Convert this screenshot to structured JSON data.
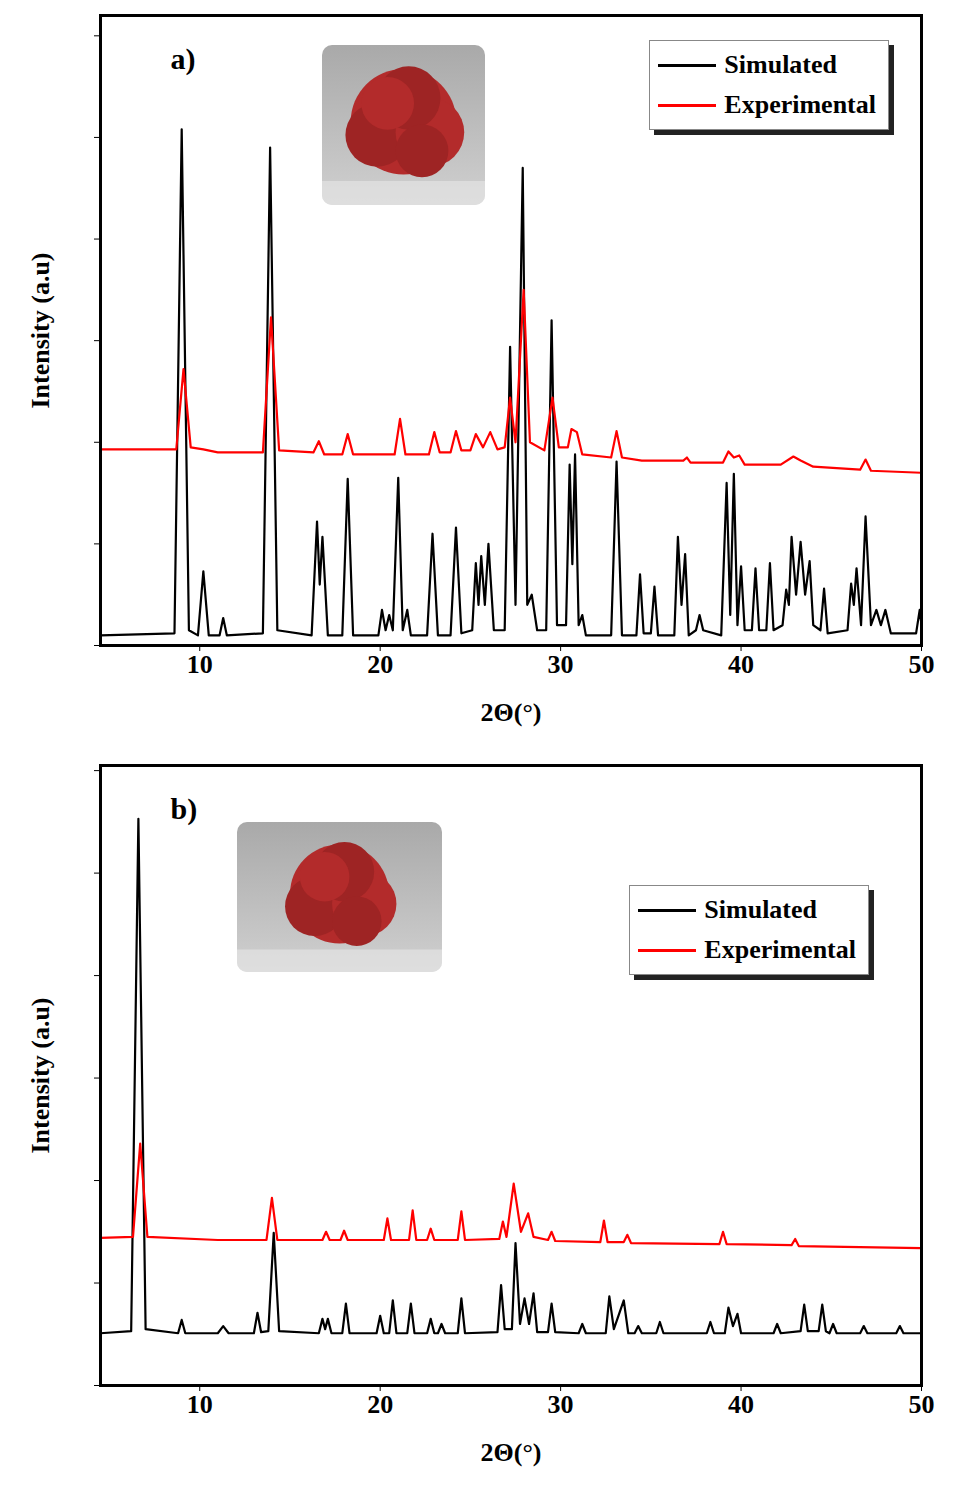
{
  "chart_data": [
    {
      "type": "line",
      "title": "a)",
      "x_label": "2Θ(°)",
      "y_label": "Intensity (a.u)",
      "xlim": [
        4.5,
        50
      ],
      "xticks": [
        10,
        20,
        30,
        40,
        50
      ],
      "ylim": [
        0,
        6.2
      ],
      "yticks": [
        0,
        1,
        2,
        3,
        4,
        5,
        6
      ],
      "tick_labels": "x",
      "grid": false,
      "legend": "upper right",
      "series": [
        {
          "name": "Simulated",
          "color": "#000000",
          "x": [
            4.5,
            8.6,
            9.0,
            9.4,
            9.9,
            10.2,
            10.5,
            11.1,
            11.3,
            11.5,
            13.5,
            13.9,
            14.3,
            16.2,
            16.5,
            16.65,
            16.8,
            17.1,
            17.9,
            18.2,
            18.5,
            19.9,
            20.1,
            20.3,
            20.5,
            20.7,
            21.0,
            21.25,
            21.5,
            21.7,
            22.6,
            22.9,
            23.2,
            23.9,
            24.2,
            24.5,
            25.1,
            25.3,
            25.45,
            25.6,
            25.8,
            26.0,
            26.3,
            26.9,
            27.2,
            27.5,
            27.9,
            28.15,
            28.4,
            28.7,
            29.2,
            29.5,
            29.8,
            30.3,
            30.5,
            30.65,
            30.8,
            31.0,
            31.2,
            31.4,
            32.8,
            33.1,
            33.4,
            34.2,
            34.4,
            34.6,
            35.0,
            35.2,
            35.4,
            36.3,
            36.5,
            36.7,
            36.9,
            37.1,
            37.5,
            37.7,
            37.9,
            38.9,
            39.2,
            39.4,
            39.6,
            39.8,
            40.0,
            40.2,
            40.6,
            40.8,
            41.0,
            41.4,
            41.6,
            41.8,
            42.3,
            42.5,
            42.65,
            42.8,
            43.05,
            43.3,
            43.55,
            43.8,
            44.0,
            44.4,
            44.6,
            44.8,
            45.9,
            46.1,
            46.25,
            46.4,
            46.65,
            46.9,
            47.2,
            47.5,
            47.75,
            48.0,
            48.3,
            49.7,
            49.9,
            50
          ],
          "values": [
            0.1,
            0.12,
            5.08,
            0.15,
            0.1,
            0.73,
            0.1,
            0.1,
            0.27,
            0.1,
            0.12,
            4.9,
            0.15,
            0.1,
            1.22,
            0.6,
            1.07,
            0.1,
            0.1,
            1.64,
            0.1,
            0.1,
            0.35,
            0.15,
            0.3,
            0.15,
            1.65,
            0.15,
            0.35,
            0.1,
            0.1,
            1.1,
            0.1,
            0.1,
            1.16,
            0.12,
            0.15,
            0.81,
            0.4,
            0.88,
            0.4,
            1.0,
            0.15,
            0.15,
            2.94,
            0.4,
            4.7,
            0.4,
            0.5,
            0.15,
            0.15,
            3.2,
            0.2,
            0.2,
            1.78,
            0.8,
            1.88,
            0.2,
            0.3,
            0.1,
            0.1,
            1.81,
            0.1,
            0.1,
            0.7,
            0.12,
            0.12,
            0.58,
            0.1,
            0.1,
            1.07,
            0.4,
            0.9,
            0.1,
            0.15,
            0.3,
            0.15,
            0.1,
            1.6,
            0.3,
            1.69,
            0.2,
            0.78,
            0.15,
            0.15,
            0.76,
            0.15,
            0.15,
            0.81,
            0.15,
            0.2,
            0.55,
            0.4,
            1.07,
            0.5,
            1.02,
            0.5,
            0.83,
            0.2,
            0.15,
            0.56,
            0.12,
            0.15,
            0.61,
            0.4,
            0.76,
            0.2,
            1.27,
            0.2,
            0.35,
            0.2,
            0.35,
            0.12,
            0.12,
            0.35,
            0.2
          ]
        },
        {
          "name": "Experimental",
          "color": "#ff0000",
          "x": [
            4.5,
            8.7,
            9.1,
            9.5,
            10.2,
            11.0,
            13.5,
            13.95,
            14.4,
            16.3,
            16.6,
            16.9,
            17.9,
            18.2,
            18.5,
            20.8,
            21.1,
            21.4,
            22.7,
            23.0,
            23.3,
            23.9,
            24.2,
            24.5,
            25.0,
            25.3,
            25.7,
            26.1,
            26.5,
            26.9,
            27.2,
            27.5,
            27.95,
            28.3,
            29.1,
            29.55,
            29.9,
            30.4,
            30.6,
            30.9,
            31.2,
            32.8,
            33.1,
            33.4,
            34.5,
            36.8,
            37.0,
            37.2,
            39.0,
            39.3,
            39.6,
            39.9,
            40.2,
            41.8,
            42.2,
            42.9,
            43.3,
            44.0,
            46.6,
            46.9,
            47.2,
            50
          ],
          "values": [
            1.93,
            1.93,
            2.72,
            1.95,
            1.93,
            1.9,
            1.9,
            3.23,
            1.92,
            1.9,
            2.01,
            1.88,
            1.88,
            2.08,
            1.88,
            1.88,
            2.23,
            1.88,
            1.88,
            2.1,
            1.9,
            1.9,
            2.11,
            1.92,
            1.92,
            2.08,
            1.95,
            2.1,
            1.93,
            1.95,
            2.44,
            2.0,
            3.5,
            2.0,
            1.92,
            2.44,
            1.95,
            1.95,
            2.13,
            2.1,
            1.88,
            1.85,
            2.11,
            1.85,
            1.82,
            1.82,
            1.85,
            1.8,
            1.8,
            1.91,
            1.85,
            1.87,
            1.78,
            1.78,
            1.78,
            1.86,
            1.82,
            1.76,
            1.73,
            1.83,
            1.72,
            1.7
          ]
        }
      ]
    },
    {
      "type": "line",
      "title": "b)",
      "x_label": "2Θ(°)",
      "y_label": "Intensity (a.u)",
      "xlim": [
        4.5,
        50
      ],
      "xticks": [
        10,
        20,
        30,
        40,
        50
      ],
      "ylim": [
        0,
        6.05
      ],
      "yticks": [
        0,
        1,
        2,
        3,
        4,
        5,
        6
      ],
      "tick_labels": "x",
      "grid": false,
      "legend": "upper right",
      "series": [
        {
          "name": "Simulated",
          "color": "#000000",
          "x": [
            4.5,
            6.2,
            6.6,
            7.0,
            8.8,
            9.0,
            9.2,
            11.0,
            11.3,
            11.6,
            13.0,
            13.2,
            13.4,
            13.8,
            14.1,
            14.4,
            16.6,
            16.8,
            16.95,
            17.1,
            17.3,
            17.9,
            18.1,
            18.3,
            19.8,
            20.0,
            20.2,
            20.5,
            20.7,
            20.9,
            21.5,
            21.7,
            21.9,
            22.6,
            22.8,
            23.0,
            23.2,
            23.4,
            23.6,
            24.3,
            24.5,
            24.7,
            26.5,
            26.7,
            26.9,
            27.3,
            27.5,
            27.75,
            28.0,
            28.25,
            28.5,
            28.7,
            29.3,
            29.5,
            29.7,
            31.0,
            31.2,
            31.4,
            32.5,
            32.7,
            32.95,
            33.5,
            33.75,
            34.1,
            34.3,
            34.5,
            35.3,
            35.5,
            35.7,
            38.1,
            38.3,
            38.5,
            39.1,
            39.3,
            39.55,
            39.8,
            40.0,
            41.8,
            42.0,
            42.2,
            43.3,
            43.5,
            43.7,
            44.3,
            44.5,
            44.7,
            44.9,
            45.1,
            45.3,
            46.6,
            46.8,
            47.0,
            48.6,
            48.8,
            49.0,
            50
          ],
          "values": [
            0.51,
            0.53,
            5.53,
            0.55,
            0.51,
            0.64,
            0.51,
            0.51,
            0.58,
            0.51,
            0.51,
            0.71,
            0.52,
            0.53,
            1.49,
            0.53,
            0.51,
            0.65,
            0.55,
            0.65,
            0.51,
            0.51,
            0.8,
            0.51,
            0.51,
            0.68,
            0.51,
            0.51,
            0.83,
            0.51,
            0.51,
            0.8,
            0.51,
            0.51,
            0.65,
            0.51,
            0.51,
            0.6,
            0.51,
            0.51,
            0.85,
            0.51,
            0.52,
            0.98,
            0.55,
            0.55,
            1.39,
            0.6,
            0.85,
            0.6,
            0.9,
            0.52,
            0.52,
            0.8,
            0.52,
            0.51,
            0.6,
            0.51,
            0.51,
            0.87,
            0.55,
            0.83,
            0.51,
            0.51,
            0.58,
            0.51,
            0.51,
            0.62,
            0.51,
            0.51,
            0.62,
            0.51,
            0.51,
            0.76,
            0.58,
            0.7,
            0.51,
            0.51,
            0.6,
            0.51,
            0.53,
            0.79,
            0.53,
            0.53,
            0.79,
            0.53,
            0.51,
            0.6,
            0.51,
            0.51,
            0.58,
            0.51,
            0.51,
            0.58,
            0.51,
            0.51
          ]
        },
        {
          "name": "Experimental",
          "color": "#ff0000",
          "x": [
            4.5,
            6.3,
            6.7,
            7.1,
            11.0,
            13.7,
            14.0,
            14.3,
            16.8,
            17.0,
            17.2,
            17.8,
            18.0,
            18.2,
            20.2,
            20.4,
            20.6,
            21.6,
            21.8,
            22.0,
            22.6,
            22.8,
            23.0,
            24.3,
            24.5,
            24.7,
            26.6,
            26.8,
            27.0,
            27.4,
            27.8,
            28.2,
            28.5,
            29.3,
            29.5,
            29.7,
            32.2,
            32.4,
            32.6,
            33.5,
            33.7,
            33.9,
            38.8,
            39.0,
            39.2,
            42.8,
            43.0,
            43.2,
            50
          ],
          "values": [
            1.44,
            1.45,
            2.36,
            1.45,
            1.42,
            1.42,
            1.83,
            1.42,
            1.42,
            1.5,
            1.42,
            1.42,
            1.51,
            1.42,
            1.42,
            1.63,
            1.42,
            1.42,
            1.71,
            1.42,
            1.42,
            1.53,
            1.42,
            1.42,
            1.7,
            1.42,
            1.43,
            1.6,
            1.45,
            1.97,
            1.5,
            1.68,
            1.45,
            1.42,
            1.5,
            1.41,
            1.4,
            1.61,
            1.4,
            1.4,
            1.47,
            1.39,
            1.38,
            1.5,
            1.38,
            1.37,
            1.43,
            1.36,
            1.34
          ]
        }
      ]
    }
  ]
}
